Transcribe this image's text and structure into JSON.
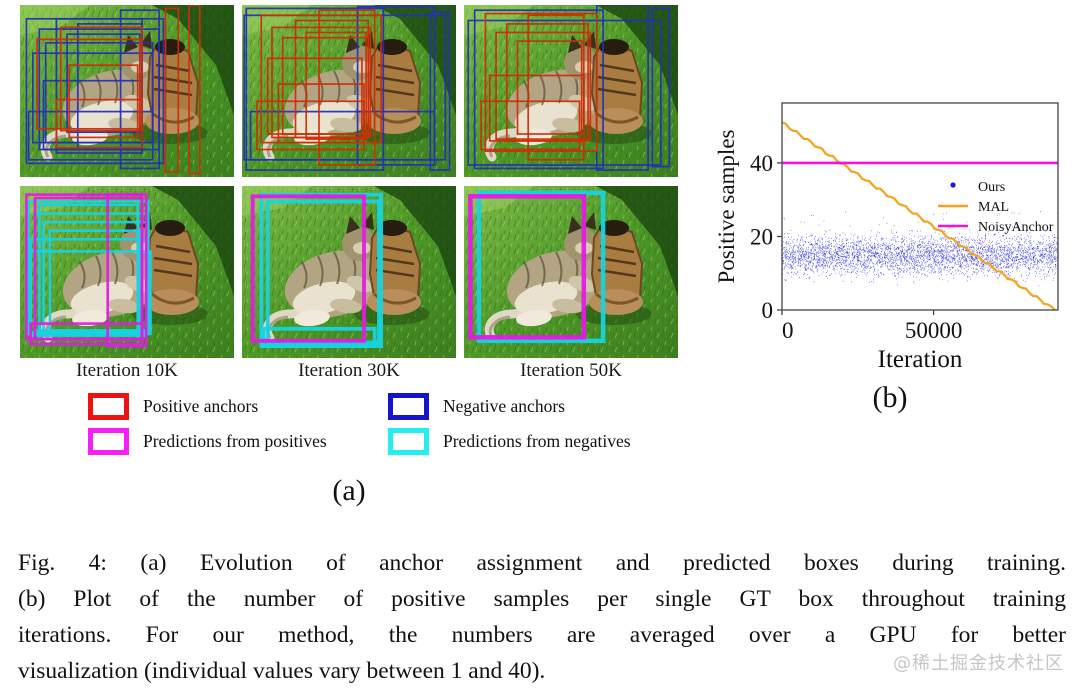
{
  "figure": {
    "caption_lines": [
      "Fig. 4: (a) Evolution of anchor assignment and predicted boxes during training.",
      "(b) Plot of the number of positive samples per single GT box throughout training",
      "iterations. For our method, the numbers are averaged over a GPU for better",
      "visualization (individual values vary between 1 and 40)."
    ],
    "watermark": "@稀土掘金技术社区",
    "panel_a": {
      "label": "(a)",
      "iteration_labels": [
        "Iteration 10K",
        "Iteration 30K",
        "Iteration 50K"
      ],
      "legend": [
        {
          "key": "pos",
          "label": "Positive anchors",
          "color": "#ee1111"
        },
        {
          "key": "neg",
          "label": "Negative anchors",
          "color": "#1414cc"
        },
        {
          "key": "predpos",
          "label": "Predictions from positives",
          "color": "#f620f6"
        },
        {
          "key": "predneg",
          "label": "Predictions from negatives",
          "color": "#25eeee"
        }
      ],
      "box_colors": {
        "pos": "#cf2e04",
        "neg": "#2430b8",
        "predpos": "#e619e6",
        "predneg": "#17d3e0"
      },
      "panels": [
        {
          "name": "anchors-10k",
          "stroke": 1.7,
          "boxes": [
            [
              9,
              14,
              56,
              70,
              "neg"
            ],
            [
              12,
              22,
              50,
              58,
              "neg"
            ],
            [
              6,
              28,
              56,
              52,
              "neg"
            ],
            [
              17,
              8,
              40,
              78,
              "neg"
            ],
            [
              11,
              44,
              46,
              40,
              "neg"
            ],
            [
              22,
              17,
              34,
              57,
              "neg"
            ],
            [
              4,
              62,
              58,
              28,
              "neg"
            ],
            [
              27,
              11,
              30,
              72,
              "neg"
            ],
            [
              47,
              3,
              18,
              92,
              "neg"
            ],
            [
              3,
              8,
              64,
              84,
              "neg"
            ],
            [
              19,
              13,
              38,
              60,
              "pos"
            ],
            [
              23,
              35,
              32,
              42,
              "pos"
            ],
            [
              8,
              20,
              48,
              52,
              "pos"
            ],
            [
              68,
              2,
              6,
              95,
              "pos"
            ],
            [
              79,
              0,
              5,
              98,
              "pos"
            ],
            [
              17,
              55,
              40,
              28,
              "pos"
            ]
          ]
        },
        {
          "name": "anchors-30k",
          "stroke": 1.7,
          "boxes": [
            [
              1,
              6,
              94,
              84,
              "neg"
            ],
            [
              4,
              62,
              86,
              28,
              "neg"
            ],
            [
              54,
              1,
              36,
              92,
              "neg"
            ],
            [
              88,
              4,
              9,
              92,
              "neg"
            ],
            [
              2,
              2,
              64,
              94,
              "neg"
            ],
            [
              9,
              6,
              56,
              74,
              "pos"
            ],
            [
              14,
              13,
              46,
              64,
              "pos"
            ],
            [
              19,
              19,
              40,
              56,
              "pos"
            ],
            [
              12,
              31,
              44,
              44,
              "pos"
            ],
            [
              25,
              9,
              34,
              68,
              "pos"
            ],
            [
              17,
              46,
              40,
              34,
              "pos"
            ],
            [
              30,
              16,
              28,
              62,
              "pos"
            ],
            [
              7,
              56,
              50,
              28,
              "pos"
            ],
            [
              36,
              3,
              26,
              90,
              "pos"
            ]
          ]
        },
        {
          "name": "anchors-50k",
          "stroke": 1.7,
          "boxes": [
            [
              2,
              9,
              90,
              84,
              "neg"
            ],
            [
              62,
              0,
              24,
              96,
              "neg"
            ],
            [
              88,
              2,
              8,
              92,
              "neg"
            ],
            [
              5,
              3,
              60,
              92,
              "neg"
            ],
            [
              10,
              5,
              52,
              80,
              "pos"
            ],
            [
              15,
              16,
              44,
              62,
              "pos"
            ],
            [
              20,
              11,
              38,
              68,
              "pos"
            ],
            [
              12,
              41,
              44,
              38,
              "pos"
            ],
            [
              25,
              21,
              30,
              54,
              "pos"
            ],
            [
              8,
              56,
              46,
              28,
              "pos"
            ],
            [
              30,
              6,
              26,
              84,
              "pos"
            ]
          ]
        },
        {
          "name": "predictions-10k",
          "stroke": 2.6,
          "boxes": [
            [
              4,
              9,
              56,
              76,
              "predneg"
            ],
            [
              7,
              16,
              52,
              68,
              "predneg"
            ],
            [
              11,
              21,
              48,
              64,
              "predneg"
            ],
            [
              5,
              31,
              54,
              56,
              "predneg"
            ],
            [
              9,
              11,
              46,
              78,
              "predneg"
            ],
            [
              14,
              26,
              42,
              58,
              "predneg"
            ],
            [
              3,
              38,
              58,
              48,
              "predneg"
            ],
            [
              3,
              5,
              54,
              84,
              "predpos"
            ],
            [
              7,
              7,
              50,
              82,
              "predpos"
            ],
            [
              41,
              5,
              18,
              88,
              "predpos"
            ],
            [
              5,
              80,
              52,
              12,
              "predpos"
            ]
          ]
        },
        {
          "name": "predictions-30k",
          "stroke": 3.8,
          "boxes": [
            [
              9,
              5,
              56,
              88,
              "predneg"
            ],
            [
              12,
              9,
              52,
              82,
              "predneg"
            ],
            [
              10,
              83,
              52,
              10,
              "predneg"
            ],
            [
              5,
              6,
              52,
              84,
              "predpos"
            ]
          ]
        },
        {
          "name": "predictions-50k",
          "stroke": 4.5,
          "boxes": [
            [
              7,
              4,
              58,
              86,
              "predneg"
            ],
            [
              3,
              6,
              53,
              82,
              "predpos"
            ]
          ]
        }
      ]
    },
    "panel_b": {
      "label": "(b)"
    }
  },
  "chart_data": {
    "type": "mixed",
    "title": "",
    "xlabel": "Iteration",
    "ylabel": "Positive samples",
    "xlim": [
      0,
      91000
    ],
    "ylim": [
      0,
      56
    ],
    "xticks": [
      0,
      50000
    ],
    "yticks": [
      0,
      20,
      40
    ],
    "grid": false,
    "legend_position": "center-right",
    "series": [
      {
        "name": "Ours",
        "type": "scatter",
        "color": "#1818e6",
        "marker": "dot",
        "points_summary": {
          "count": 4000,
          "x_range": [
            0,
            91000
          ],
          "y_mean": 14.8,
          "y_std": 2.7,
          "y_range": [
            5,
            27
          ],
          "description": "dense noisy band of positive-sample counts per iteration"
        }
      },
      {
        "name": "MAL",
        "type": "line",
        "color": "#f5a31a",
        "style": "stair-wiggle",
        "points": [
          [
            0,
            51
          ],
          [
            90000,
            0
          ]
        ]
      },
      {
        "name": "NoisyAnchor",
        "type": "line",
        "color": "#f711dd",
        "points": [
          [
            0,
            40
          ],
          [
            91000,
            40
          ]
        ]
      }
    ]
  }
}
